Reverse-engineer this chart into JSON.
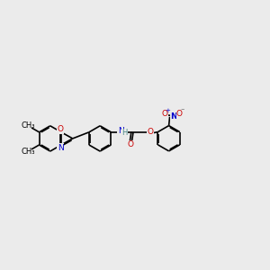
{
  "background_color": "#ebebeb",
  "bond_color": "#000000",
  "atom_colors": {
    "N": "#0000cc",
    "O": "#cc0000",
    "C": "#000000",
    "H": "#4a8888"
  },
  "figsize": [
    3.0,
    3.0
  ],
  "dpi": 100
}
